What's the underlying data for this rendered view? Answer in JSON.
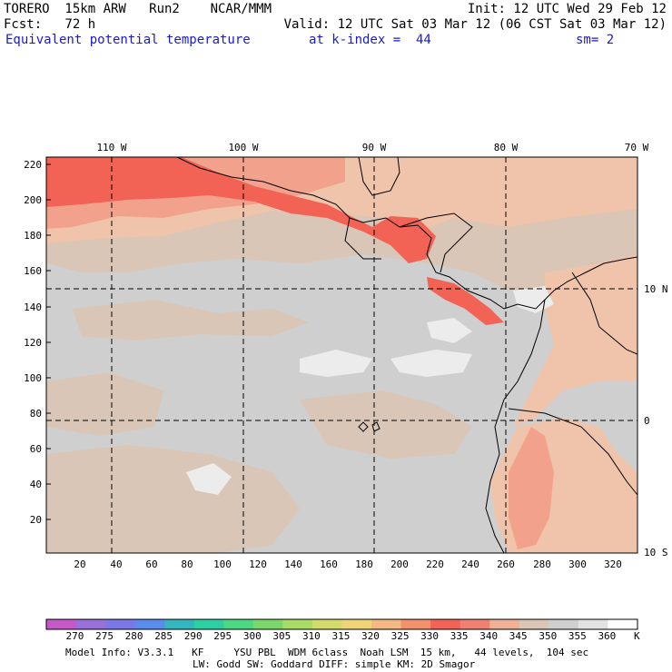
{
  "header": {
    "line1_left": "TORERO  15km ARW   Run2    NCAR/MMM",
    "line1_right": "Init: 12 UTC Wed 29 Feb 12",
    "line2_left": "Fcst:   72 h",
    "line2_right": "Valid: 12 UTC Sat 03 Mar 12 (06 CST Sat 03 Mar 12)",
    "line3_field": "Equivalent potential temperature",
    "line3_level": "at k-index =  44",
    "line3_sm": "sm= 2"
  },
  "map": {
    "lon_labels": [
      "110 W",
      "100 W",
      "90 W",
      "80 W",
      "70 W"
    ],
    "lat_labels": [
      "10 N",
      "0",
      "10 S"
    ],
    "y_ticks": [
      "220",
      "200",
      "180",
      "160",
      "140",
      "120",
      "100",
      "80",
      "60",
      "40",
      "20"
    ],
    "x_ticks": [
      "20",
      "40",
      "60",
      "80",
      "100",
      "120",
      "140",
      "160",
      "180",
      "200",
      "220",
      "240",
      "260",
      "280",
      "300",
      "320"
    ],
    "colors": {
      "background": "#cfcfcf",
      "tan": "#d9c6b6",
      "peach": "#efc4aa",
      "salmon": "#f2a28c",
      "red": "#f26255",
      "white_patch": "#ececec",
      "land_gray": "#c8c8c8"
    }
  },
  "colorbar": {
    "unit": "K",
    "labels": [
      "270",
      "275",
      "280",
      "285",
      "290",
      "295",
      "300",
      "305",
      "310",
      "315",
      "320",
      "325",
      "330",
      "335",
      "340",
      "345",
      "350",
      "355",
      "360"
    ],
    "colors": [
      "#c45ac8",
      "#9a70d8",
      "#7a78e6",
      "#5a8cf0",
      "#34b6c0",
      "#2cd0a0",
      "#4cd882",
      "#7ad86a",
      "#a8dc68",
      "#d2dc6a",
      "#f0d47a",
      "#f6b882",
      "#f4906a",
      "#f26255",
      "#f08070",
      "#efb096",
      "#d9c6b6",
      "#cfcfcf",
      "#e2e2e2",
      "#ffffff"
    ]
  },
  "footer": {
    "line1": "Model Info: V3.3.1   KF     YSU PBL  WDM 6class  Noah LSM  15 km,   44 levels,  104 sec",
    "line2": "LW: Godd SW: Goddard DIFF: simple KM: 2D Smagor"
  }
}
